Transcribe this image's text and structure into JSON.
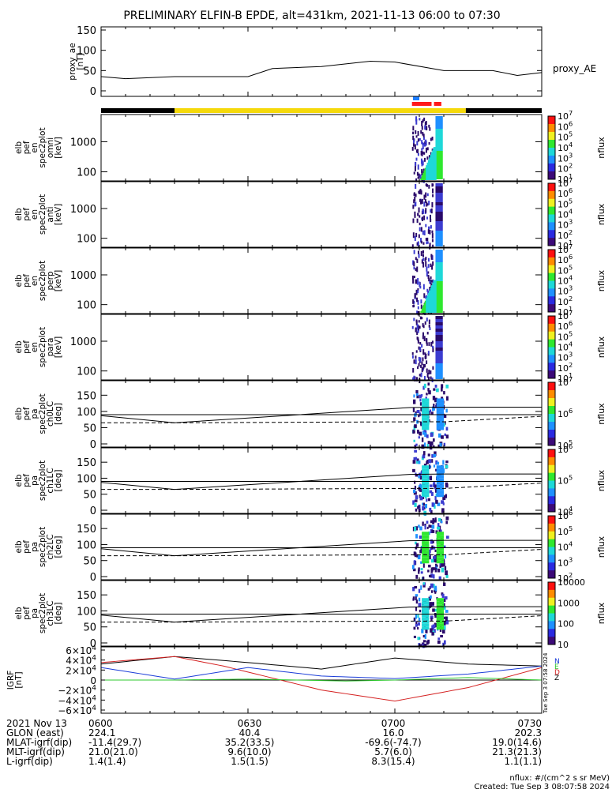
{
  "title": "PRELIMINARY ELFIN-B EPDE, alt=431km, 2021-11-13 06:00 to 07:30",
  "proxy_ae": {
    "ylabel": [
      "proxy_ae",
      "[nT]"
    ],
    "legend": "proxy_AE",
    "ticks": [
      "150",
      "100",
      "50",
      "0"
    ]
  },
  "spec_panels": [
    {
      "ylabel": [
        "elb",
        "pef",
        "en",
        "spec2plot",
        "omni",
        "[keV]"
      ],
      "ticks": [
        "1000",
        "100"
      ],
      "cbar_ticks": [
        "10^7",
        "10^6",
        "10^5",
        "10^4",
        "10^3",
        "10^2",
        "10^1"
      ],
      "cbar_label": "nflux"
    },
    {
      "ylabel": [
        "elb",
        "pef",
        "en",
        "spec2plot",
        "anti",
        "[keV]"
      ],
      "ticks": [
        "1000",
        "100"
      ],
      "cbar_ticks": [
        "10^7",
        "10^6",
        "10^5",
        "10^4",
        "10^3",
        "10^2",
        "10^1"
      ],
      "cbar_label": "nflux"
    },
    {
      "ylabel": [
        "elb",
        "pef",
        "en",
        "spec2plot",
        "perp",
        "[keV]"
      ],
      "ticks": [
        "1000",
        "100"
      ],
      "cbar_ticks": [
        "10^7",
        "10^6",
        "10^5",
        "10^4",
        "10^3",
        "10^2",
        "10^1"
      ],
      "cbar_label": "nflux"
    },
    {
      "ylabel": [
        "elb",
        "pef",
        "en",
        "spec2plot",
        "para",
        "[keV]"
      ],
      "ticks": [
        "1000",
        "100"
      ],
      "cbar_ticks": [
        "10^7",
        "10^6",
        "10^5",
        "10^4",
        "10^3",
        "10^2",
        "10^1"
      ],
      "cbar_label": "nflux"
    }
  ],
  "pa_panels": [
    {
      "ylabel": [
        "elb",
        "pef",
        "pa",
        "spec2plot",
        "ch0LC",
        "[deg]"
      ],
      "ticks": [
        "150",
        "100",
        "50",
        "0"
      ],
      "cbar_ticks": [
        "10^7",
        "10^6",
        "10^5"
      ],
      "cbar_label": "nflux"
    },
    {
      "ylabel": [
        "elb",
        "pef",
        "pa",
        "spec2plot",
        "ch1LC",
        "[deg]"
      ],
      "ticks": [
        "150",
        "100",
        "50",
        "0"
      ],
      "cbar_ticks": [
        "10^6",
        "10^5",
        "10^4"
      ],
      "cbar_label": "nflux"
    },
    {
      "ylabel": [
        "elb",
        "pef",
        "pa",
        "spec2plot",
        "ch2LC",
        "[deg]"
      ],
      "ticks": [
        "150",
        "100",
        "50",
        "0"
      ],
      "cbar_ticks": [
        "10^6",
        "10^5",
        "10^4",
        "10^3",
        "10^2"
      ],
      "cbar_label": "nflux"
    },
    {
      "ylabel": [
        "elb",
        "pef",
        "pa",
        "spec2plot",
        "ch3LC",
        "[deg]"
      ],
      "ticks": [
        "150",
        "100",
        "50",
        "0"
      ],
      "cbar_ticks": [
        "10000",
        "1000",
        "100",
        "10"
      ],
      "cbar_label": "nflux"
    }
  ],
  "igrf": {
    "ylabel": [
      "IGRF",
      "[nT]"
    ],
    "ticks": [
      "6×10^4",
      "4×10^4",
      "2×10^4",
      "0",
      "−2×10^4",
      "−4×10^4",
      "−6×10^4"
    ],
    "legend": [
      "N",
      "E",
      "D",
      "Z"
    ],
    "side_text": "Tue Sep  3 07:58 2024"
  },
  "colors": {
    "state_bar_black": "#000000",
    "state_bar_yellow": "#f5d90a",
    "marker_blue": "#1e7fff",
    "marker_red": "#ff1a1a",
    "igrf_black": "#000000",
    "igrf_red": "#d42020",
    "igrf_blue": "#1a3cd8",
    "igrf_green": "#2fc82f"
  },
  "orbit_table": {
    "rows": [
      {
        "label": "2021 Nov 13",
        "values": [
          "0600",
          "0630",
          "0700",
          "0730"
        ]
      },
      {
        "label": "GLON (east)",
        "values": [
          "224.1",
          "40.4",
          "16.0",
          "202.3"
        ]
      },
      {
        "label": "MLAT-igrf(dip)",
        "values": [
          "-11.4(29.7)",
          "35.2(33.5)",
          "-69.6(-74.7)",
          "19.0(14.6)"
        ]
      },
      {
        "label": "MLT-igrf(dip)",
        "values": [
          "21.0(21.0)",
          "9.6(10.0)",
          "5.7(6.0)",
          "21.3(21.3)"
        ]
      },
      {
        "label": "L-igrf(dip)",
        "values": [
          "1.4(1.4)",
          "1.5(1.5)",
          "8.3(15.4)",
          "1.1(1.1)"
        ]
      }
    ]
  },
  "footer": {
    "units": "nflux: #/(cm^2 s sr MeV)",
    "created": "Created: Tue Sep  3 08:07:58 2024"
  },
  "chart_data": {
    "type": "line",
    "xlabel": "",
    "x_range": [
      "06:00",
      "07:30"
    ],
    "x_ticks": [
      "0600",
      "0630",
      "0700",
      "0730"
    ],
    "proxy_ae": {
      "ylim": [
        0,
        150
      ],
      "x_min": [
        0,
        5,
        15,
        30,
        35,
        45,
        55,
        60,
        70,
        80,
        85,
        90
      ],
      "values": [
        35,
        30,
        35,
        35,
        55,
        60,
        73,
        71,
        50,
        50,
        38,
        45
      ]
    },
    "state_bar": [
      {
        "start_min": 0,
        "end_min": 15,
        "color": "black"
      },
      {
        "start_min": 15,
        "end_min": 74.5,
        "color": "yellow"
      },
      {
        "start_min": 74.5,
        "end_min": 90,
        "color": "black"
      }
    ],
    "science_zones": {
      "blue": [
        [
          63.7,
          65.0
        ]
      ],
      "red": [
        [
          63.5,
          67.5
        ],
        [
          68.0,
          69.5
        ]
      ]
    },
    "spectrogram": {
      "energy_ylim_keV": [
        50,
        8000
      ],
      "log_y": true,
      "active_interval_min": [
        63.5,
        70.5
      ]
    },
    "pitch_angle": {
      "ylim": [
        0,
        180
      ],
      "loss_cone_solid": {
        "x_min": [
          0,
          15,
          63,
          70,
          90
        ],
        "values": [
          87,
          65,
          112,
          113,
          113
        ]
      },
      "loss_cone_dashed": {
        "x_min": [
          0,
          15,
          63,
          70,
          90
        ],
        "values": [
          65,
          65,
          68,
          68,
          85
        ]
      },
      "horizontal_ref": 90
    },
    "igrf_series": [
      {
        "name": "",
        "color": "black",
        "x_min": [
          0,
          15,
          30,
          45,
          60,
          75,
          90
        ],
        "values": [
          32000,
          47000,
          35000,
          22000,
          44000,
          32000,
          28000
        ]
      },
      {
        "name": "",
        "color": "red",
        "x_min": [
          0,
          15,
          25,
          45,
          60,
          75,
          90
        ],
        "values": [
          35000,
          47000,
          28000,
          -20000,
          -42000,
          -15000,
          25000
        ]
      },
      {
        "name": "",
        "color": "blue",
        "x_min": [
          0,
          15,
          30,
          45,
          60,
          75,
          90
        ],
        "values": [
          25000,
          2000,
          25000,
          8000,
          3000,
          12000,
          28000
        ]
      },
      {
        "name": "",
        "color": "green",
        "x_min": [
          0,
          15,
          30,
          50,
          60,
          75,
          90
        ],
        "values": [
          0,
          0,
          2000,
          -2000,
          0,
          5000,
          0
        ]
      }
    ],
    "igrf_ylim": [
      -60000,
      60000
    ]
  }
}
